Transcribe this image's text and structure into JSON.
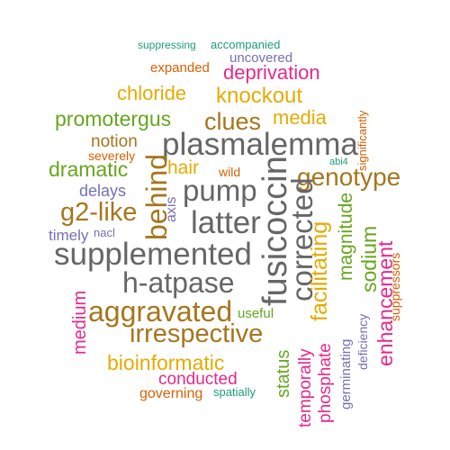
{
  "palette": {
    "teal": "#1b9e77",
    "orange": "#d95f02",
    "purple": "#7570b3",
    "magenta": "#e7298a",
    "green": "#66a61e",
    "gold": "#e6ab02",
    "brown": "#a6761d",
    "gray": "#666666"
  },
  "words": [
    {
      "text": "suppressing",
      "color": "teal"
    },
    {
      "text": "accompanied",
      "color": "teal"
    },
    {
      "text": "uncovered",
      "color": "purple"
    },
    {
      "text": "expanded",
      "color": "orange"
    },
    {
      "text": "deprivation",
      "color": "magenta"
    },
    {
      "text": "chloride",
      "color": "gold"
    },
    {
      "text": "knockout",
      "color": "gold"
    },
    {
      "text": "significantly",
      "color": "orange"
    },
    {
      "text": "promotergus",
      "color": "green"
    },
    {
      "text": "clues",
      "color": "brown"
    },
    {
      "text": "media",
      "color": "gold"
    },
    {
      "text": "notion",
      "color": "brown"
    },
    {
      "text": "plasmalemma",
      "color": "gray"
    },
    {
      "text": "severely",
      "color": "orange"
    },
    {
      "text": "abi4",
      "color": "teal"
    },
    {
      "text": "dramatic",
      "color": "green"
    },
    {
      "text": "behind",
      "color": "brown"
    },
    {
      "text": "hair",
      "color": "gold"
    },
    {
      "text": "wild",
      "color": "orange"
    },
    {
      "text": "fusicoccin",
      "color": "gray"
    },
    {
      "text": "genotype",
      "color": "brown"
    },
    {
      "text": "pump",
      "color": "gray"
    },
    {
      "text": "delays",
      "color": "purple"
    },
    {
      "text": "axis",
      "color": "purple"
    },
    {
      "text": "g2-like",
      "color": "brown"
    },
    {
      "text": "latter",
      "color": "gray"
    },
    {
      "text": "corrected",
      "color": "gray"
    },
    {
      "text": "magnitude",
      "color": "green"
    },
    {
      "text": "timely",
      "color": "purple"
    },
    {
      "text": "nacl",
      "color": "purple"
    },
    {
      "text": "supplemented",
      "color": "gray"
    },
    {
      "text": "facilitating",
      "color": "gold"
    },
    {
      "text": "sodium",
      "color": "green"
    },
    {
      "text": "enhancement",
      "color": "magenta"
    },
    {
      "text": "suppressors",
      "color": "orange"
    },
    {
      "text": "h-atpase",
      "color": "gray"
    },
    {
      "text": "medium",
      "color": "magenta"
    },
    {
      "text": "aggravated",
      "color": "brown"
    },
    {
      "text": "useful",
      "color": "green"
    },
    {
      "text": "deficiency",
      "color": "purple"
    },
    {
      "text": "germinating",
      "color": "purple"
    },
    {
      "text": "irrespective",
      "color": "brown"
    },
    {
      "text": "status",
      "color": "green"
    },
    {
      "text": "temporally",
      "color": "magenta"
    },
    {
      "text": "phosphate",
      "color": "magenta"
    },
    {
      "text": "bioinformatic",
      "color": "gold"
    },
    {
      "text": "conducted",
      "color": "magenta"
    },
    {
      "text": "governing",
      "color": "orange"
    },
    {
      "text": "spatially",
      "color": "teal"
    }
  ]
}
